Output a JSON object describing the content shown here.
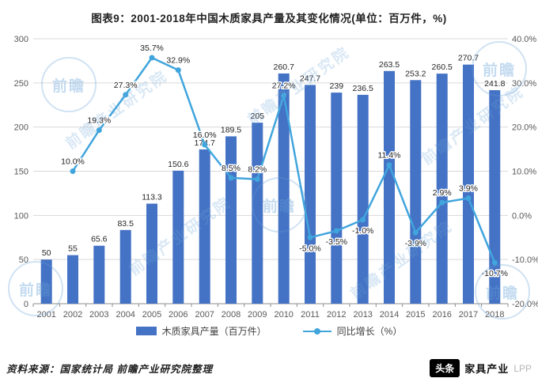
{
  "title": "图表9：2001-2018年中国木质家具产量及其变化情况(单位：百万件，%)",
  "chart_data": {
    "type": "bar+line",
    "categories": [
      "2001",
      "2002",
      "2003",
      "2004",
      "2005",
      "2006",
      "2007",
      "2008",
      "2009",
      "2010",
      "2011",
      "2012",
      "2013",
      "2014",
      "2015",
      "2016",
      "2017",
      "2018"
    ],
    "series": [
      {
        "name": "木质家具产量（百万件）",
        "type": "bar",
        "axis": "left",
        "values": [
          50,
          55,
          65.6,
          83.5,
          113.3,
          150.6,
          174.7,
          189.5,
          205,
          260.7,
          247.7,
          239,
          236.5,
          263.5,
          253.2,
          260.5,
          270.7,
          241.8
        ],
        "labels": [
          "50",
          "55",
          "65.6",
          "83.5",
          "113.3",
          "150.6",
          "174.7",
          "189.5",
          "205",
          "260.7",
          "247.7",
          "239",
          "236.5",
          "263.5",
          "253.2",
          "260.5",
          "270.7",
          "241.8"
        ]
      },
      {
        "name": "同比增长（%）",
        "type": "line",
        "axis": "right",
        "values": [
          null,
          10.0,
          19.3,
          27.3,
          35.7,
          32.9,
          16.0,
          8.5,
          8.2,
          27.2,
          -5.0,
          -3.5,
          -1.0,
          11.4,
          -3.9,
          2.9,
          3.9,
          -10.7
        ],
        "labels": [
          null,
          "10.0%",
          "19.3%",
          "27.3%",
          "35.7%",
          "32.9%",
          "16.0%",
          "8.5%",
          "8.2%",
          "27.2%",
          "-5.0%",
          "-3.5%",
          "-1.0%",
          "11.4%",
          "-3.9%",
          "2.9%",
          "3.9%",
          "-10.7%"
        ]
      }
    ],
    "left_axis": {
      "min": 0,
      "max": 300,
      "step": 50,
      "ticks_bottom_to_top": [
        "0",
        "50",
        "100",
        "150",
        "200",
        "250",
        "300"
      ]
    },
    "right_axis": {
      "min": -20,
      "max": 40,
      "step": 10,
      "ticks_bottom_to_top": [
        "-20.0%",
        "-10.0%",
        "0.0%",
        "10.0%",
        "20.0%",
        "30.0%",
        "40.0%"
      ]
    },
    "grid": true,
    "legend_position": "bottom",
    "colors": {
      "bar": "#4472c4",
      "line": "#41a5dd",
      "grid": "#d9d9d9",
      "axis": "#8c8c8c",
      "tick_text": "#595959",
      "data_label": "#262626"
    }
  },
  "legend": {
    "items": [
      {
        "label": "木质家具产量（百万件）",
        "type": "bar"
      },
      {
        "label": "同比增长（%）",
        "type": "line"
      }
    ]
  },
  "footer": {
    "source": "资料来源：国家统计局 前瞻产业研究院整理"
  },
  "branding": {
    "badge": "头条",
    "name": "家具产业",
    "suffix": "LPP"
  },
  "watermark": {
    "text": "前瞻产业研究院",
    "seal": "前瞻"
  }
}
